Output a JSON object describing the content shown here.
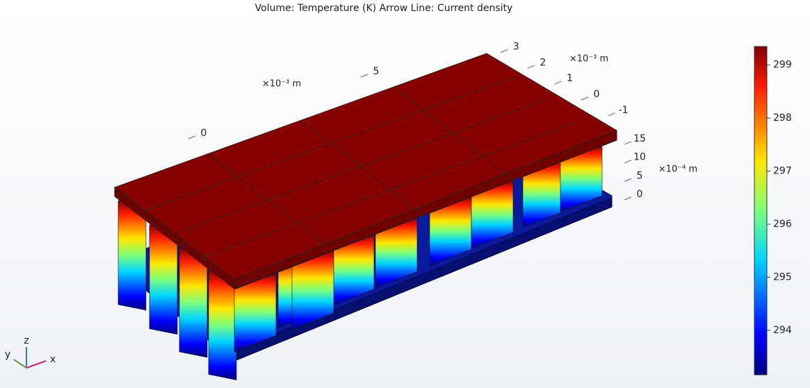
{
  "title": "Volume: Temperature (K)  Arrow Line: Current density",
  "colorbar": {
    "range": [
      293.16,
      299.35
    ],
    "ticks": [
      294,
      295,
      296,
      297,
      298,
      299
    ]
  },
  "axes": {
    "x": {
      "unit": "×10⁻³ m",
      "ticks": [
        0,
        5
      ]
    },
    "y": {
      "unit": "×10⁻³ m",
      "ticks": [
        3,
        2,
        1,
        0,
        -1
      ]
    },
    "z": {
      "unit": "×10⁻⁴ m",
      "ticks": [
        15,
        10,
        5,
        0
      ]
    }
  },
  "triad": {
    "x": "x",
    "y": "y",
    "z": "z"
  }
}
